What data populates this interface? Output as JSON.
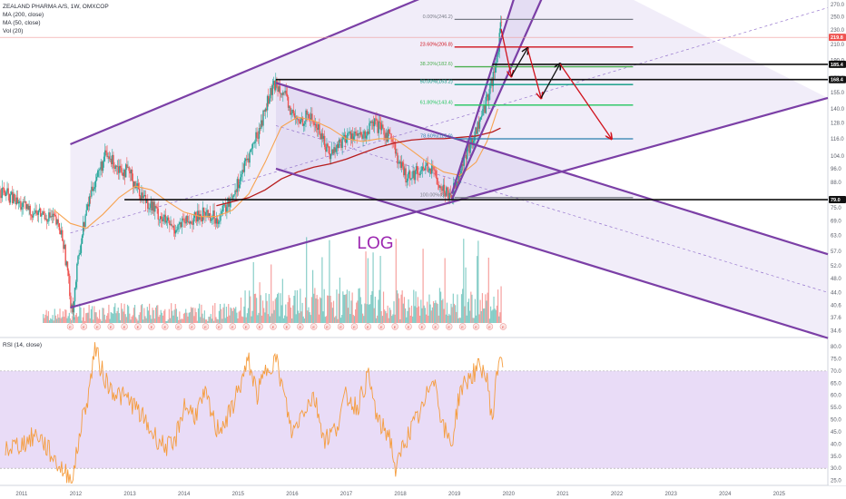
{
  "legend": {
    "title": "ZEALAND PHARMA A/S, 1W, OMXCOP",
    "ma200": "MA (200, close)",
    "ma50": "MA (50, close)",
    "vol": "Vol (20)",
    "rsi": "RSI (14, close)"
  },
  "annotation": {
    "log_label": "LOG"
  },
  "colors": {
    "up": "#26a69a",
    "down": "#ef5350",
    "ma50": "#f7a350",
    "ma200": "#b71c1c",
    "channel": "#7b3fa6",
    "rsi": "#f59d3f",
    "rsi_band": "#e9dcf7",
    "arrow_red": "#d0121c",
    "arrow_black": "#111111"
  },
  "chart_data": [
    {
      "type": "candlestick",
      "title": "ZEALAND PHARMA A/S, 1W, OMXCOP",
      "x_axis": {
        "labels": [
          "2011",
          "2012",
          "2013",
          "2014",
          "2015",
          "2016",
          "2017",
          "2018",
          "2019",
          "2020",
          "2021",
          "2022",
          "2023",
          "2024",
          "2025"
        ],
        "range": [
          2010.6,
          2025.9
        ]
      },
      "y_axis": {
        "scale": "log",
        "range": [
          33.5,
          275
        ],
        "ticks": [
          270.0,
          250.0,
          230.0,
          210.0,
          190.0,
          170.0,
          155.0,
          140.0,
          128.0,
          116.0,
          104.0,
          96.0,
          88.0,
          79.0,
          75.0,
          69.0,
          63.0,
          57.0,
          52.0,
          48.0,
          44.0,
          40.6,
          37.6,
          34.6
        ]
      },
      "price_tags": [
        {
          "value": 219.8,
          "label": "219.8",
          "color": "#ef5350"
        },
        {
          "value": 185.4,
          "label": "185.4",
          "color": "#111111"
        },
        {
          "value": 168.4,
          "label": "168.4",
          "color": "#111111"
        },
        {
          "value": 79.0,
          "label": "79.0",
          "color": "#111111"
        }
      ],
      "fib_levels": [
        {
          "ratio": "0.00%",
          "value": 246.2,
          "label": "0.00%(246.2)",
          "color": "#787b86"
        },
        {
          "ratio": "23.60%",
          "value": 206.8,
          "label": "23.60%(206.8)",
          "color": "#d0121c"
        },
        {
          "ratio": "38.20%",
          "value": 182.6,
          "label": "38.20%(182.6)",
          "color": "#4caf50"
        },
        {
          "ratio": "50.00%",
          "value": 163.2,
          "label": "50.00%(163.2)",
          "color": "#089981"
        },
        {
          "ratio": "61.80%",
          "value": 143.4,
          "label": "61.80%(143.4)",
          "color": "#22c55e"
        },
        {
          "ratio": "78.60%",
          "value": 115.9,
          "label": "78.60%(115.9)",
          "color": "#2a7fae"
        },
        {
          "ratio": "100.00%",
          "value": 80.0,
          "label": "100.00%(80.0)",
          "color": "#787b86"
        }
      ],
      "horizontal_lines": [
        185.4,
        168.4,
        79.0
      ],
      "price_path": [
        [
          2010.6,
          84
        ],
        [
          2010.8,
          80
        ],
        [
          2011.0,
          76
        ],
        [
          2011.2,
          73
        ],
        [
          2011.4,
          72
        ],
        [
          2011.6,
          70
        ],
        [
          2011.75,
          63
        ],
        [
          2011.85,
          50
        ],
        [
          2011.9,
          42
        ],
        [
          2011.95,
          40
        ],
        [
          2012.05,
          55
        ],
        [
          2012.15,
          68
        ],
        [
          2012.3,
          85
        ],
        [
          2012.45,
          96
        ],
        [
          2012.55,
          104
        ],
        [
          2012.7,
          100
        ],
        [
          2012.85,
          96
        ],
        [
          2013.0,
          93
        ],
        [
          2013.2,
          82
        ],
        [
          2013.4,
          76
        ],
        [
          2013.6,
          70
        ],
        [
          2013.8,
          66
        ],
        [
          2014.0,
          68
        ],
        [
          2014.2,
          70
        ],
        [
          2014.4,
          73
        ],
        [
          2014.6,
          70
        ],
        [
          2014.8,
          76
        ],
        [
          2015.0,
          88
        ],
        [
          2015.2,
          104
        ],
        [
          2015.4,
          124
        ],
        [
          2015.55,
          148
        ],
        [
          2015.7,
          165
        ],
        [
          2015.8,
          160
        ],
        [
          2015.95,
          140
        ],
        [
          2016.1,
          128
        ],
        [
          2016.3,
          135
        ],
        [
          2016.5,
          122
        ],
        [
          2016.7,
          105
        ],
        [
          2016.9,
          114
        ],
        [
          2017.1,
          120
        ],
        [
          2017.3,
          116
        ],
        [
          2017.5,
          128
        ],
        [
          2017.7,
          120
        ],
        [
          2017.85,
          118
        ],
        [
          2017.95,
          100
        ],
        [
          2018.1,
          92
        ],
        [
          2018.3,
          94
        ],
        [
          2018.5,
          98
        ],
        [
          2018.65,
          92
        ],
        [
          2018.8,
          84
        ],
        [
          2018.95,
          82
        ],
        [
          2019.1,
          95
        ],
        [
          2019.25,
          108
        ],
        [
          2019.4,
          122
        ],
        [
          2019.55,
          140
        ],
        [
          2019.65,
          160
        ],
        [
          2019.75,
          178
        ],
        [
          2019.8,
          200
        ],
        [
          2019.85,
          232
        ]
      ],
      "ma50_path": [
        [
          2011.6,
          74
        ],
        [
          2011.9,
          68
        ],
        [
          2012.2,
          66
        ],
        [
          2012.5,
          72
        ],
        [
          2012.8,
          80
        ],
        [
          2013.1,
          86
        ],
        [
          2013.4,
          84
        ],
        [
          2013.7,
          78
        ],
        [
          2014.0,
          73
        ],
        [
          2014.3,
          71
        ],
        [
          2014.6,
          71
        ],
        [
          2014.9,
          74
        ],
        [
          2015.2,
          82
        ],
        [
          2015.5,
          100
        ],
        [
          2015.8,
          125
        ],
        [
          2016.1,
          133
        ],
        [
          2016.4,
          130
        ],
        [
          2016.7,
          124
        ],
        [
          2017.0,
          116
        ],
        [
          2017.3,
          114
        ],
        [
          2017.6,
          116
        ],
        [
          2017.9,
          116
        ],
        [
          2018.2,
          108
        ],
        [
          2018.5,
          100
        ],
        [
          2018.8,
          94
        ],
        [
          2019.1,
          92
        ],
        [
          2019.4,
          100
        ],
        [
          2019.6,
          114
        ],
        [
          2019.8,
          140
        ]
      ],
      "ma200_path": [
        [
          2014.6,
          76
        ],
        [
          2014.9,
          78
        ],
        [
          2015.2,
          80
        ],
        [
          2015.5,
          84
        ],
        [
          2015.8,
          90
        ],
        [
          2016.1,
          94
        ],
        [
          2016.4,
          97
        ],
        [
          2016.7,
          99
        ],
        [
          2017.0,
          102
        ],
        [
          2017.3,
          106
        ],
        [
          2017.6,
          110
        ],
        [
          2017.9,
          113
        ],
        [
          2018.2,
          115
        ],
        [
          2018.5,
          116
        ],
        [
          2018.8,
          116
        ],
        [
          2019.1,
          117
        ],
        [
          2019.4,
          118
        ],
        [
          2019.7,
          121
        ],
        [
          2019.85,
          124
        ]
      ],
      "channels": [
        {
          "name": "",
          "lines": [
            [
              [
                2011.9,
                112
              ],
              [
                2020.5,
                380
              ]
            ],
            [
              [
                2011.9,
                40
              ],
              [
                2025.9,
                150
              ]
            ]
          ]
        },
        {
          "name": "",
          "lines": [
            [
              [
                2015.7,
                165
              ],
              [
                2025.9,
                56
              ]
            ],
            [
              [
                2015.7,
                96
              ],
              [
                2025.9,
                33
              ]
            ]
          ]
        },
        {
          "name": "",
          "lines": [
            [
              [
                2018.95,
                82
              ],
              [
                2020.6,
                480
              ]
            ],
            [
              [
                2018.95,
                79
              ],
              [
                2020.7,
                300
              ]
            ]
          ]
        }
      ],
      "arrows": [
        {
          "color": "red",
          "from": [
            2019.86,
            232
          ],
          "to": [
            2020.05,
            172
          ]
        },
        {
          "color": "black",
          "from": [
            2020.05,
            172
          ],
          "to": [
            2020.35,
            205
          ]
        },
        {
          "color": "red",
          "from": [
            2020.35,
            205
          ],
          "to": [
            2020.6,
            150
          ]
        },
        {
          "color": "black",
          "from": [
            2020.6,
            150
          ],
          "to": [
            2020.95,
            186
          ]
        },
        {
          "color": "red",
          "from": [
            2020.95,
            186
          ],
          "to": [
            2021.9,
            116
          ]
        }
      ],
      "volume": {
        "max_height_hint": "peaks near 2015-2019"
      }
    },
    {
      "type": "line",
      "title": "RSI (14, close)",
      "y_axis": {
        "range": [
          23,
          83
        ],
        "ticks": [
          80.0,
          75.0,
          70.0,
          65.0,
          60.0,
          55.0,
          50.0,
          45.0,
          40.0,
          35.0,
          30.0,
          25.0
        ]
      },
      "band": [
        30,
        70
      ],
      "series": [
        {
          "name": "RSI (14, close)",
          "values": [
            [
              2010.7,
              38
            ],
            [
              2011.0,
              40
            ],
            [
              2011.3,
              44
            ],
            [
              2011.6,
              34
            ],
            [
              2011.8,
              28
            ],
            [
              2011.95,
              26
            ],
            [
              2012.1,
              48
            ],
            [
              2012.25,
              62
            ],
            [
              2012.35,
              80
            ],
            [
              2012.45,
              72
            ],
            [
              2012.6,
              64
            ],
            [
              2012.8,
              60
            ],
            [
              2013.0,
              58
            ],
            [
              2013.2,
              52
            ],
            [
              2013.4,
              45
            ],
            [
              2013.6,
              40
            ],
            [
              2013.8,
              38
            ],
            [
              2014.0,
              56
            ],
            [
              2014.2,
              52
            ],
            [
              2014.4,
              60
            ],
            [
              2014.6,
              46
            ],
            [
              2014.8,
              50
            ],
            [
              2015.0,
              62
            ],
            [
              2015.2,
              74
            ],
            [
              2015.35,
              60
            ],
            [
              2015.55,
              72
            ],
            [
              2015.7,
              75
            ],
            [
              2015.85,
              60
            ],
            [
              2016.0,
              44
            ],
            [
              2016.2,
              54
            ],
            [
              2016.4,
              60
            ],
            [
              2016.6,
              42
            ],
            [
              2016.8,
              46
            ],
            [
              2017.0,
              60
            ],
            [
              2017.2,
              55
            ],
            [
              2017.4,
              68
            ],
            [
              2017.6,
              48
            ],
            [
              2017.8,
              44
            ],
            [
              2017.92,
              28
            ],
            [
              2018.05,
              40
            ],
            [
              2018.25,
              48
            ],
            [
              2018.45,
              56
            ],
            [
              2018.6,
              70
            ],
            [
              2018.8,
              46
            ],
            [
              2018.95,
              40
            ],
            [
              2019.1,
              62
            ],
            [
              2019.3,
              68
            ],
            [
              2019.5,
              72
            ],
            [
              2019.6,
              66
            ],
            [
              2019.7,
              50
            ],
            [
              2019.8,
              72
            ],
            [
              2019.85,
              78
            ],
            [
              2019.9,
              72
            ]
          ]
        }
      ]
    }
  ]
}
